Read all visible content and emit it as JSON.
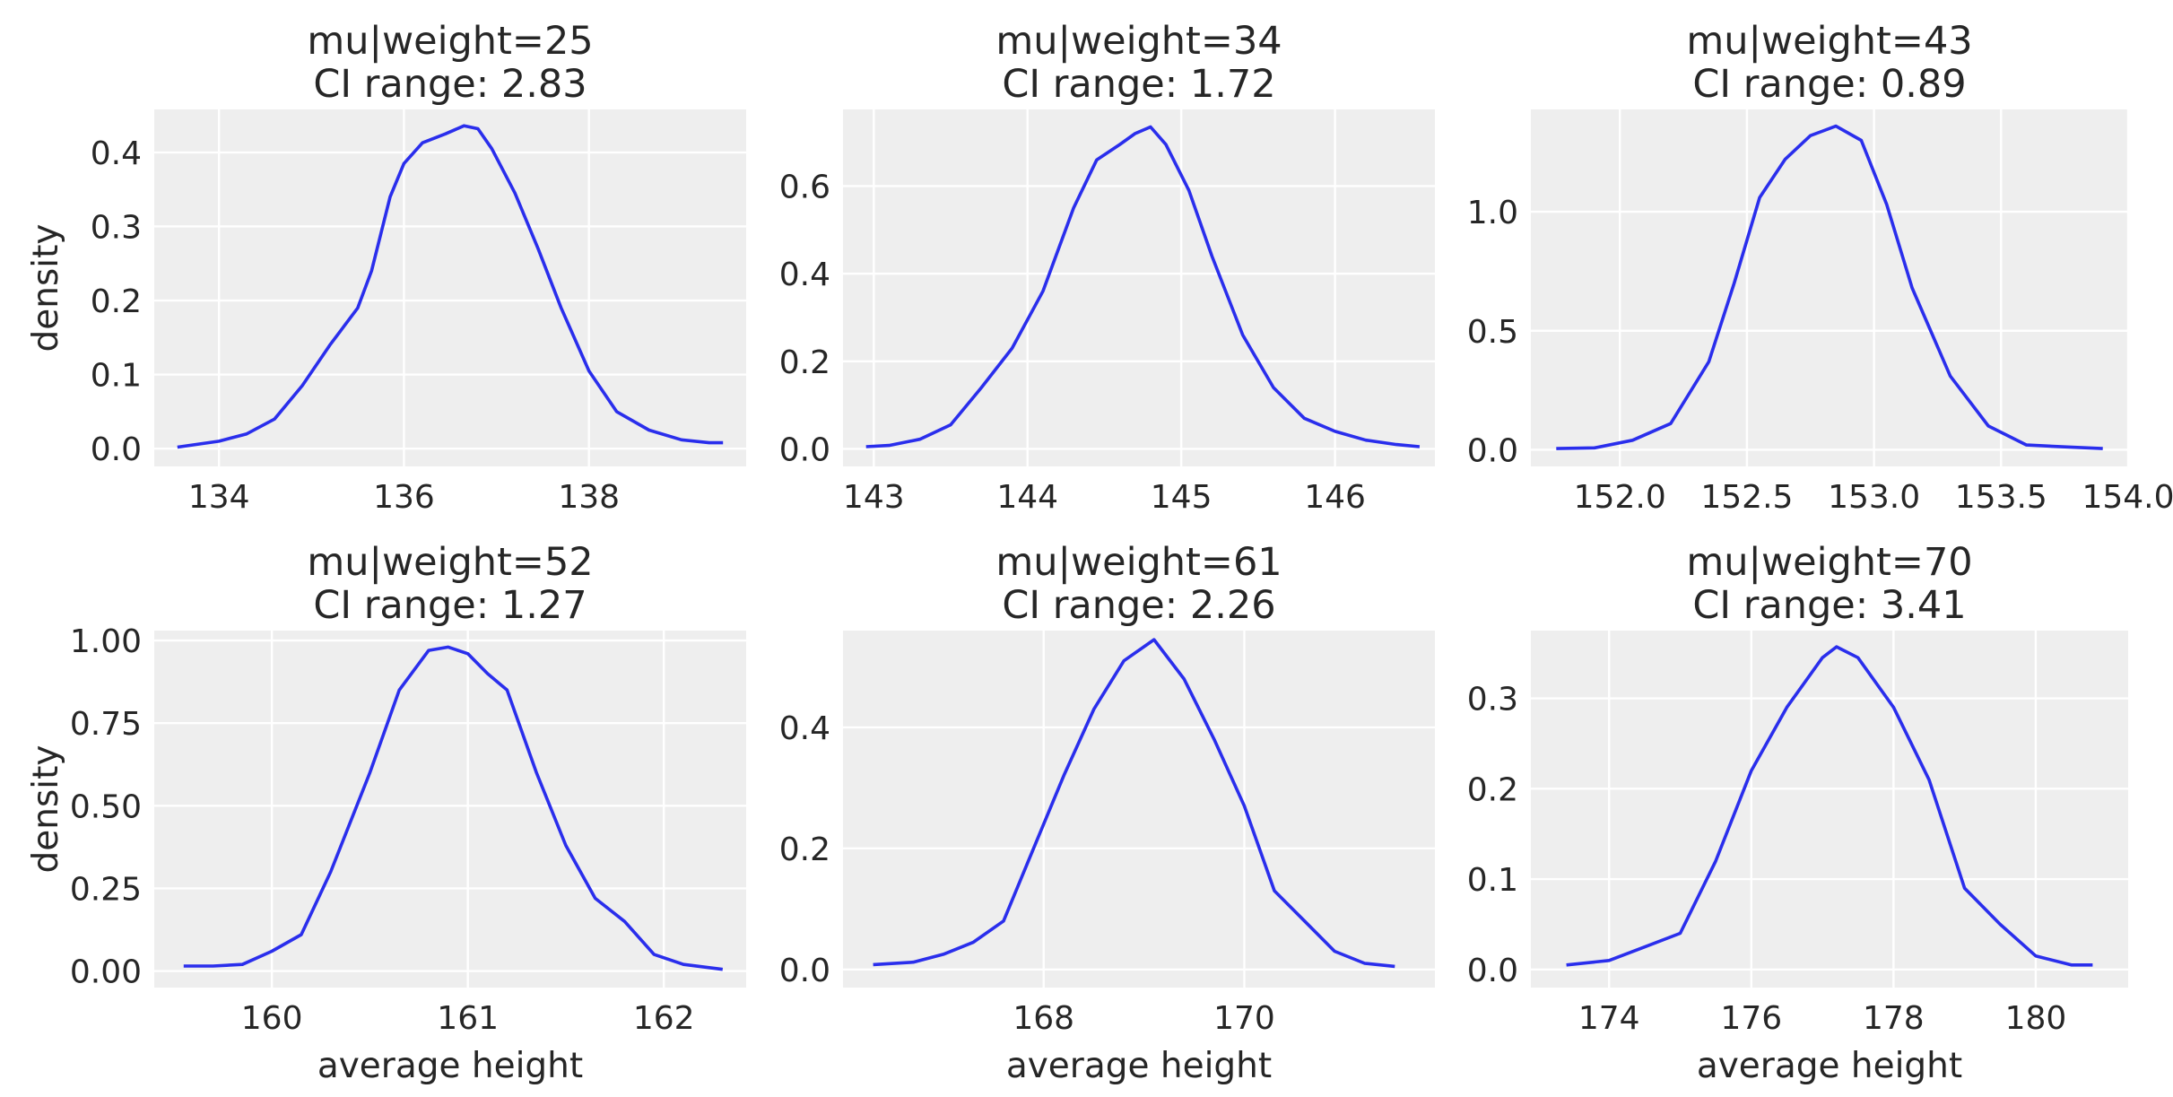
{
  "figure": {
    "curve_color": "#2a2eec",
    "background": "#eeeeee",
    "grid_color": "#ffffff"
  },
  "chart_data": [
    {
      "type": "line",
      "title": [
        "mu|weight=25",
        "CI range: 2.83"
      ],
      "xlabel": "",
      "ylabel": "density",
      "xlim": [
        133.3,
        139.7
      ],
      "ylim": [
        -0.024,
        0.458
      ],
      "xticks": [
        134,
        136,
        138
      ],
      "xtick_labels": [
        "134",
        "136",
        "138"
      ],
      "yticks": [
        0.0,
        0.1,
        0.2,
        0.3,
        0.4
      ],
      "ytick_labels": [
        "0.0",
        "0.1",
        "0.2",
        "0.3",
        "0.4"
      ],
      "grid": true,
      "series": [
        {
          "x": [
            133.55,
            134.0,
            134.3,
            134.6,
            134.9,
            135.2,
            135.5,
            135.65,
            135.85,
            136.0,
            136.2,
            136.45,
            136.65,
            136.8,
            136.95,
            137.2,
            137.45,
            137.7,
            138.0,
            138.3,
            138.65,
            139.0,
            139.3,
            139.45
          ],
          "y": [
            0.002,
            0.01,
            0.02,
            0.04,
            0.085,
            0.14,
            0.19,
            0.24,
            0.34,
            0.385,
            0.413,
            0.425,
            0.436,
            0.432,
            0.405,
            0.345,
            0.27,
            0.19,
            0.105,
            0.05,
            0.025,
            0.012,
            0.008,
            0.008
          ]
        }
      ]
    },
    {
      "type": "line",
      "title": [
        "mu|weight=34",
        "CI range: 1.72"
      ],
      "xlabel": "",
      "ylabel": "",
      "xlim": [
        142.8,
        146.65
      ],
      "ylim": [
        -0.04,
        0.775
      ],
      "xticks": [
        143,
        144,
        145,
        146
      ],
      "xtick_labels": [
        "143",
        "144",
        "145",
        "146"
      ],
      "yticks": [
        0.0,
        0.2,
        0.4,
        0.6
      ],
      "ytick_labels": [
        "0.0",
        "0.2",
        "0.4",
        "0.6"
      ],
      "grid": true,
      "series": [
        {
          "x": [
            142.95,
            143.1,
            143.3,
            143.5,
            143.7,
            143.9,
            144.1,
            144.3,
            144.45,
            144.6,
            144.7,
            144.8,
            144.9,
            145.05,
            145.2,
            145.4,
            145.6,
            145.8,
            146.0,
            146.2,
            146.4,
            146.55
          ],
          "y": [
            0.005,
            0.008,
            0.022,
            0.055,
            0.14,
            0.23,
            0.36,
            0.55,
            0.66,
            0.695,
            0.72,
            0.735,
            0.695,
            0.59,
            0.44,
            0.26,
            0.14,
            0.07,
            0.04,
            0.02,
            0.01,
            0.005
          ]
        }
      ]
    },
    {
      "type": "line",
      "title": [
        "mu|weight=43",
        "CI range: 0.89"
      ],
      "xlabel": "",
      "ylabel": "",
      "xlim": [
        151.65,
        154.0
      ],
      "ylim": [
        -0.07,
        1.43
      ],
      "xticks": [
        152.0,
        152.5,
        153.0,
        153.5,
        154.0
      ],
      "xtick_labels": [
        "152.0",
        "152.5",
        "153.0",
        "153.5",
        "154.0"
      ],
      "yticks": [
        0.0,
        0.5,
        1.0
      ],
      "ytick_labels": [
        "0.0",
        "0.5",
        "1.0"
      ],
      "grid": true,
      "series": [
        {
          "x": [
            151.75,
            151.9,
            152.05,
            152.2,
            152.35,
            152.45,
            152.55,
            152.65,
            152.75,
            152.85,
            152.95,
            153.05,
            153.15,
            153.3,
            153.45,
            153.6,
            153.75,
            153.9
          ],
          "y": [
            0.005,
            0.008,
            0.04,
            0.11,
            0.37,
            0.7,
            1.06,
            1.22,
            1.32,
            1.36,
            1.3,
            1.03,
            0.68,
            0.31,
            0.1,
            0.02,
            0.012,
            0.005
          ]
        }
      ]
    },
    {
      "type": "line",
      "title": [
        "mu|weight=52",
        "CI range: 1.27"
      ],
      "xlabel": "average height",
      "ylabel": "density",
      "xlim": [
        159.4,
        162.42
      ],
      "ylim": [
        -0.05,
        1.03
      ],
      "xticks": [
        160,
        161,
        162
      ],
      "xtick_labels": [
        "160",
        "161",
        "162"
      ],
      "yticks": [
        0.0,
        0.25,
        0.5,
        0.75,
        1.0
      ],
      "ytick_labels": [
        "0.00",
        "0.25",
        "0.50",
        "0.75",
        "1.00"
      ],
      "grid": true,
      "series": [
        {
          "x": [
            159.55,
            159.7,
            159.85,
            160.0,
            160.15,
            160.3,
            160.5,
            160.65,
            160.8,
            160.9,
            161.0,
            161.1,
            161.2,
            161.35,
            161.5,
            161.65,
            161.8,
            161.95,
            162.1,
            162.3
          ],
          "y": [
            0.015,
            0.015,
            0.02,
            0.06,
            0.11,
            0.3,
            0.6,
            0.85,
            0.97,
            0.98,
            0.96,
            0.9,
            0.85,
            0.6,
            0.38,
            0.22,
            0.15,
            0.05,
            0.02,
            0.005
          ]
        }
      ]
    },
    {
      "type": "line",
      "title": [
        "mu|weight=61",
        "CI range: 2.26"
      ],
      "xlabel": "average height",
      "ylabel": "",
      "xlim": [
        166.0,
        171.9
      ],
      "ylim": [
        -0.03,
        0.56
      ],
      "xticks": [
        168,
        170
      ],
      "xtick_labels": [
        "168",
        "170"
      ],
      "yticks": [
        0.0,
        0.2,
        0.4
      ],
      "ytick_labels": [
        "0.0",
        "0.2",
        "0.4"
      ],
      "grid": true,
      "series": [
        {
          "x": [
            166.3,
            166.7,
            167.0,
            167.3,
            167.6,
            167.9,
            168.2,
            168.5,
            168.8,
            169.1,
            169.4,
            169.7,
            170.0,
            170.3,
            170.6,
            170.9,
            171.2,
            171.5
          ],
          "y": [
            0.008,
            0.012,
            0.025,
            0.045,
            0.08,
            0.2,
            0.32,
            0.43,
            0.51,
            0.545,
            0.48,
            0.38,
            0.27,
            0.13,
            0.08,
            0.03,
            0.01,
            0.005
          ]
        }
      ]
    },
    {
      "type": "line",
      "title": [
        "mu|weight=70",
        "CI range: 3.41"
      ],
      "xlabel": "average height",
      "ylabel": "",
      "xlim": [
        172.9,
        181.3
      ],
      "ylim": [
        -0.02,
        0.375
      ],
      "xticks": [
        174,
        176,
        178,
        180
      ],
      "xtick_labels": [
        "174",
        "176",
        "178",
        "180"
      ],
      "yticks": [
        0.0,
        0.1,
        0.2,
        0.3
      ],
      "ytick_labels": [
        "0.0",
        "0.1",
        "0.2",
        "0.3"
      ],
      "grid": true,
      "series": [
        {
          "x": [
            173.4,
            174.0,
            174.5,
            175.0,
            175.5,
            176.0,
            176.5,
            177.0,
            177.2,
            177.5,
            178.0,
            178.5,
            179.0,
            179.5,
            180.0,
            180.5,
            180.8
          ],
          "y": [
            0.005,
            0.01,
            0.025,
            0.04,
            0.12,
            0.22,
            0.29,
            0.345,
            0.357,
            0.345,
            0.29,
            0.21,
            0.09,
            0.05,
            0.015,
            0.005,
            0.005
          ]
        }
      ]
    }
  ]
}
